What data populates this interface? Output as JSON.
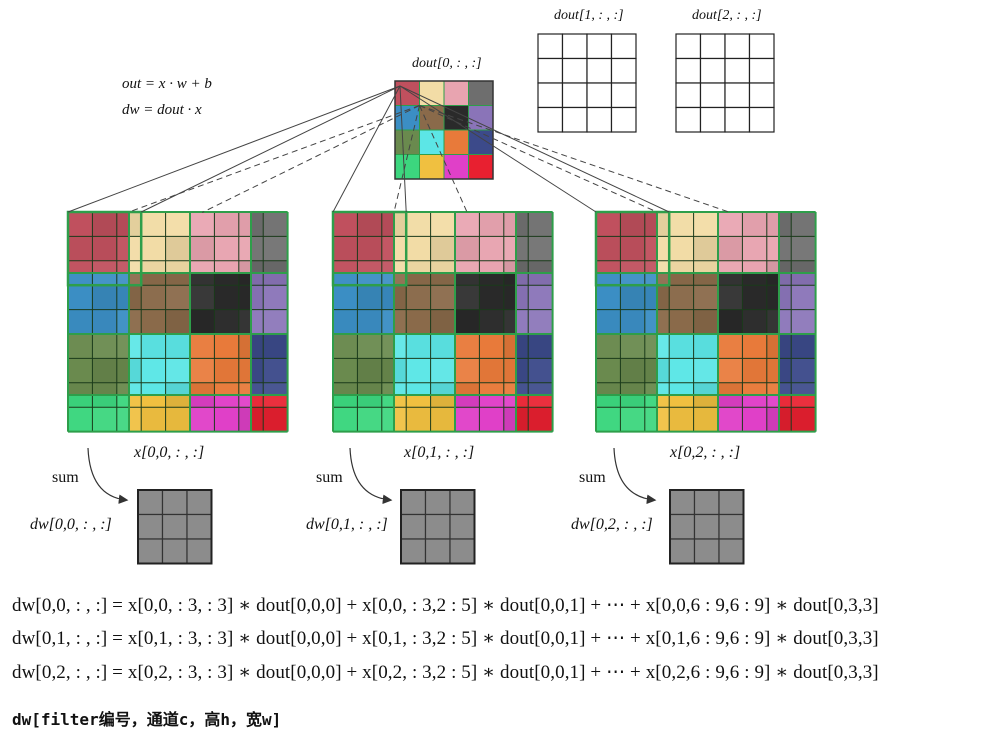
{
  "formulas": {
    "forward": "out = x · w + b",
    "grad": "dw = dout · x"
  },
  "dout_labels": [
    "dout[0, : , :]",
    "dout[1, : , :]",
    "dout[2, : , :]"
  ],
  "x_labels": [
    "x[0,0, : , :]",
    "x[0,1, : , :]",
    "x[0,2, : , :]"
  ],
  "sum_label": "sum",
  "dw_labels": [
    "dw[0,0, : , :]",
    "dw[0,1, : , :]",
    "dw[0,2, : , :]"
  ],
  "equations": [
    "dw[0,0, : , :] = x[0,0, : 3, : 3] ∗ dout[0,0,0] + x[0,0, : 3,2 : 5] ∗ dout[0,0,1] + ⋯ + x[0,0,6 : 9,6 : 9] ∗ dout[0,3,3]",
    "dw[0,1, : , :] = x[0,1, : 3, : 3] ∗ dout[0,0,0] + x[0,1, : 3,2 : 5] ∗ dout[0,0,1] + ⋯ + x[0,1,6 : 9,6 : 9] ∗ dout[0,3,3]",
    "dw[0,2, : , :] = x[0,2, : 3, : 3] ∗ dout[0,0,0] + x[0,2, : 3,2 : 5] ∗ dout[0,0,1] + ⋯ + x[0,2,6 : 9,6 : 9] ∗ dout[0,3,3]"
  ],
  "note": "dw[filter编号，通道c，高h，宽w]",
  "colors": {
    "dout_cells": [
      "#c0505e",
      "#f2dca6",
      "#e8a4b0",
      "#6e6e6e",
      "#3b8ec4",
      "#8a6a4a",
      "#2a2a2a",
      "#8a74b8",
      "#6a8a4e",
      "#5ce6e6",
      "#e87a3a",
      "#3c4a8a",
      "#3cd67e",
      "#f0c040",
      "#e040c8",
      "#e82030"
    ],
    "grid_border": "#2e9e4a",
    "dw_fill": "#8c8c8c"
  }
}
